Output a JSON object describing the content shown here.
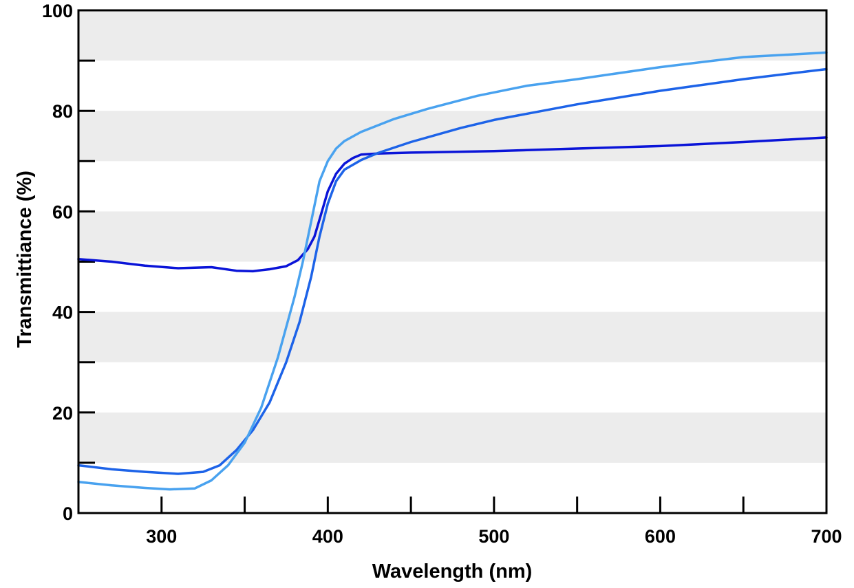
{
  "chart_data": {
    "type": "line",
    "title": "",
    "xlabel": "Wavelength (nm)",
    "ylabel": "Transmittiance (%)",
    "xlim": [
      250,
      700
    ],
    "ylim": [
      0,
      100
    ],
    "x_ticks": [
      300,
      400,
      500,
      600,
      700
    ],
    "x_minor_ticks": [
      250,
      350,
      450,
      550,
      650
    ],
    "y_ticks": [
      0,
      20,
      40,
      60,
      80,
      100
    ],
    "y_minor_ticks": [
      10,
      30,
      50,
      70,
      90
    ],
    "background": "alternating horizontal bands every 10%",
    "grid": false,
    "legend": "none",
    "band_color": "#ececec",
    "series": [
      {
        "color": "#0a14d8",
        "x": [
          250,
          270,
          290,
          310,
          330,
          345,
          355,
          365,
          375,
          382,
          388,
          392,
          396,
          400,
          405,
          410,
          415,
          420,
          430,
          450,
          500,
          550,
          600,
          650,
          700
        ],
        "y": [
          50.5,
          50,
          49.2,
          48.7,
          48.9,
          48.2,
          48.1,
          48.5,
          49.1,
          50.3,
          52.5,
          55,
          59.5,
          64,
          67.5,
          69.5,
          70.6,
          71.3,
          71.5,
          71.7,
          72,
          72.5,
          73,
          73.8,
          74.7
        ]
      },
      {
        "color": "#1d63e8",
        "x": [
          250,
          270,
          290,
          310,
          325,
          335,
          345,
          355,
          365,
          375,
          383,
          390,
          395,
          400,
          405,
          410,
          420,
          430,
          450,
          480,
          500,
          550,
          600,
          650,
          700
        ],
        "y": [
          9.5,
          8.7,
          8.2,
          7.8,
          8.2,
          9.5,
          12.5,
          16.5,
          22,
          30,
          38,
          47,
          55,
          61.5,
          66,
          68.3,
          70.2,
          71.6,
          73.8,
          76.6,
          78.2,
          81.3,
          84,
          86.3,
          88.3
        ]
      },
      {
        "color": "#49a2ef",
        "x": [
          250,
          270,
          290,
          305,
          320,
          330,
          340,
          350,
          360,
          370,
          380,
          385,
          390,
          395,
          400,
          405,
          410,
          420,
          440,
          460,
          490,
          520,
          550,
          600,
          650,
          700
        ],
        "y": [
          6.2,
          5.5,
          5.0,
          4.7,
          4.9,
          6.5,
          9.5,
          14.0,
          21.0,
          31.0,
          43.0,
          50.0,
          58.0,
          66.0,
          70.0,
          72.5,
          74.0,
          75.8,
          78.4,
          80.4,
          83.0,
          85.0,
          86.3,
          88.7,
          90.7,
          91.6
        ]
      }
    ]
  }
}
